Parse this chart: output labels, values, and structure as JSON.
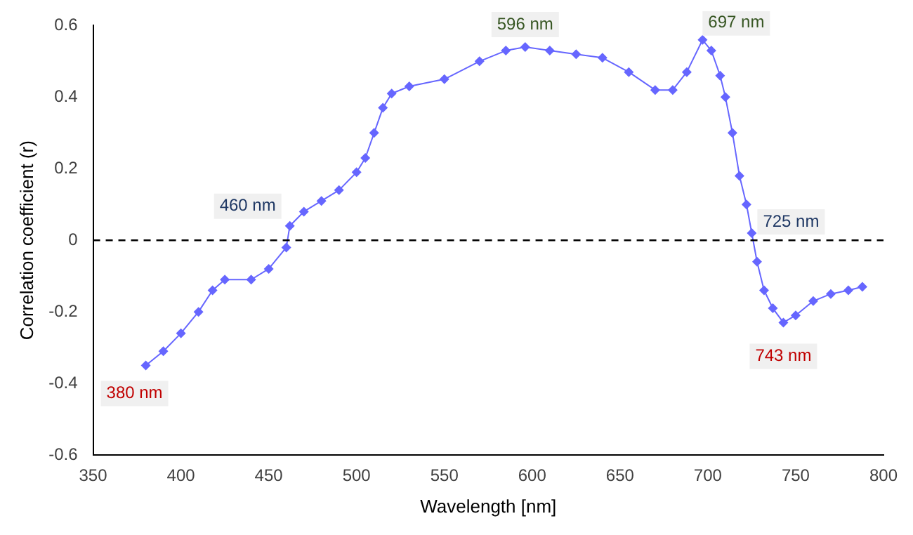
{
  "chart_data": {
    "type": "line",
    "xlabel": "Wavelength [nm]",
    "ylabel": "Correlation coefficient (r)",
    "xlim": [
      350,
      800
    ],
    "xticks": [
      350,
      400,
      450,
      500,
      550,
      600,
      650,
      700,
      750,
      800
    ],
    "ylim": [
      -0.6,
      0.6
    ],
    "yticks": [
      -0.6,
      -0.4,
      -0.2,
      0,
      0.2,
      0.4,
      0.6
    ],
    "grid": false,
    "legend": false,
    "marker": "diamond",
    "series": [
      {
        "color": "#6666ff",
        "x": [
          380,
          390,
          400,
          410,
          418,
          425,
          440,
          450,
          460,
          462,
          470,
          480,
          490,
          500,
          505,
          510,
          515,
          520,
          530,
          550,
          570,
          585,
          596,
          610,
          625,
          640,
          655,
          670,
          680,
          688,
          697,
          702,
          707,
          710,
          714,
          718,
          722,
          725,
          728,
          732,
          737,
          743,
          750,
          760,
          770,
          780,
          788
        ],
        "values": [
          -0.35,
          -0.31,
          -0.26,
          -0.2,
          -0.14,
          -0.11,
          -0.11,
          -0.08,
          -0.02,
          0.04,
          0.08,
          0.11,
          0.14,
          0.19,
          0.23,
          0.3,
          0.37,
          0.41,
          0.43,
          0.45,
          0.5,
          0.53,
          0.54,
          0.53,
          0.52,
          0.51,
          0.47,
          0.42,
          0.42,
          0.47,
          0.56,
          0.53,
          0.46,
          0.4,
          0.3,
          0.18,
          0.1,
          0.02,
          -0.06,
          -0.14,
          -0.19,
          -0.23,
          -0.21,
          -0.17,
          -0.15,
          -0.14,
          -0.13
        ]
      }
    ],
    "ref_lines": [
      {
        "axis": "y",
        "value": 0,
        "color": "#000000",
        "line_style": "dashed"
      }
    ],
    "annotations": [
      {
        "text": "380 nm",
        "x": 380,
        "y": -0.35
      },
      {
        "text": "460 nm",
        "x": 462,
        "y": 0.04
      },
      {
        "text": "596 nm",
        "x": 596,
        "y": 0.54
      },
      {
        "text": "697 nm",
        "x": 697,
        "y": 0.56
      },
      {
        "text": "725 nm",
        "x": 725,
        "y": 0.02
      },
      {
        "text": "743 nm",
        "x": 743,
        "y": -0.23
      }
    ]
  }
}
